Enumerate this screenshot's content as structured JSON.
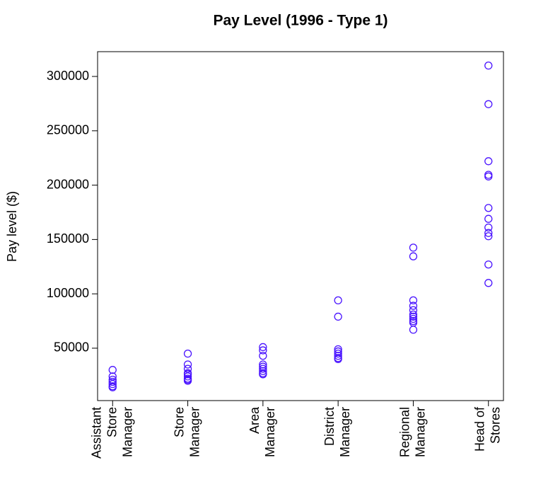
{
  "chart_data": {
    "type": "strip",
    "title": "Pay Level (1996 - Type 1)",
    "y_label": "Pay level ($)",
    "color": "#4a14ff",
    "categories": [
      "Assistant\nStore\nManager",
      "Store\nManager",
      "Area\nManager",
      "District\nManager",
      "Regional\nManager",
      "Head of\nStores"
    ],
    "values": [
      [
        30000,
        24000,
        21000,
        19000,
        17000,
        15000,
        14000
      ],
      [
        45000,
        35000,
        31000,
        27000,
        26000,
        24000,
        22000,
        21000,
        20000
      ],
      [
        51000,
        48000,
        43000,
        35000,
        33000,
        31000,
        29000,
        27000,
        26000
      ],
      [
        94000,
        79000,
        49000,
        47000,
        45000,
        43000,
        41000,
        40000
      ],
      [
        142500,
        134500,
        94000,
        89000,
        85000,
        81000,
        79000,
        77000,
        75000,
        73500,
        67000
      ],
      [
        310000,
        274500,
        222000,
        209500,
        208000,
        179000,
        169000,
        161000,
        156000,
        153000,
        127000,
        110000
      ]
    ],
    "xlim": [
      0.8,
      6.2
    ],
    "ylim": [
      1800,
      322800
    ],
    "yticks": [
      50000,
      100000,
      150000,
      200000,
      250000,
      300000
    ]
  }
}
